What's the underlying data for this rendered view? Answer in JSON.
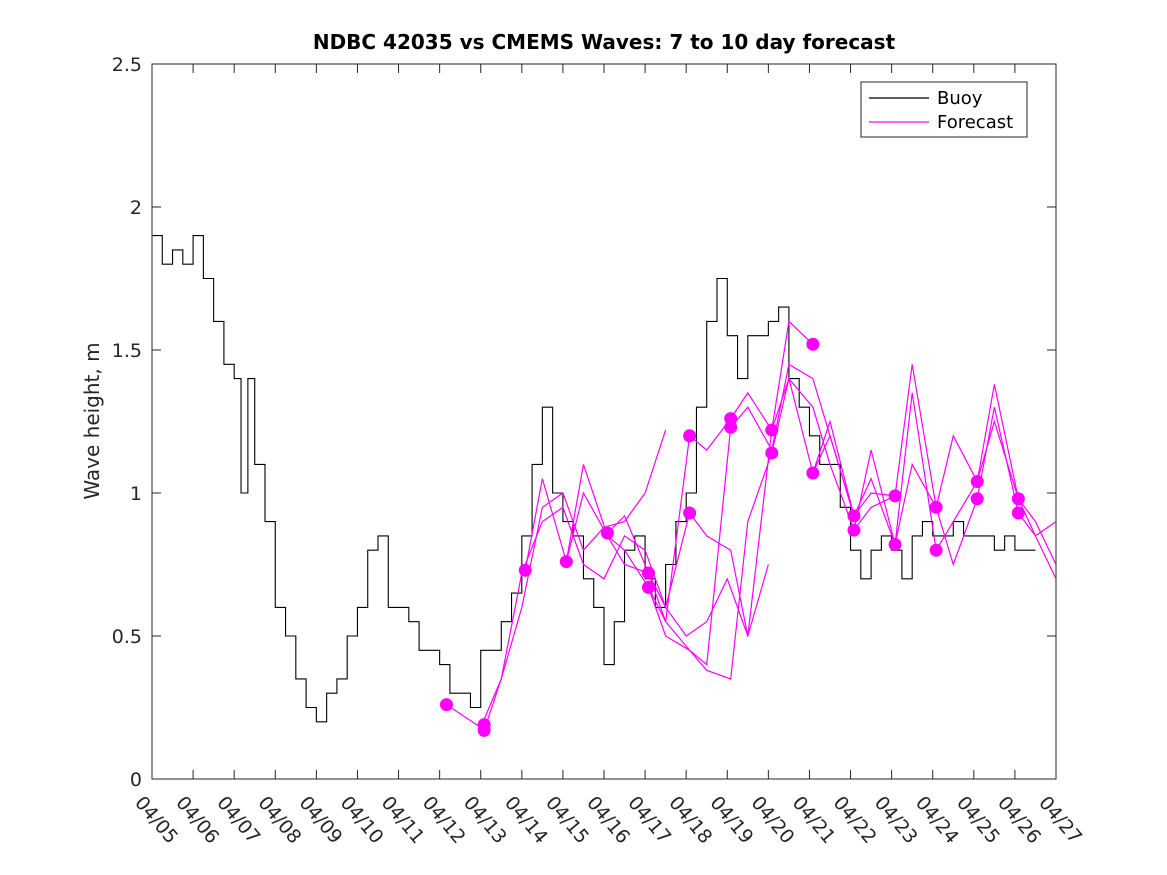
{
  "chart_data": {
    "type": "line",
    "title": "NDBC 42035 vs CMEMS Waves: 7 to 10 day forecast",
    "xlabel": "",
    "ylabel": "Wave height, m",
    "xlim": [
      "04/05",
      "04/27"
    ],
    "ylim": [
      0,
      2.5
    ],
    "x_ticks": [
      "04/05",
      "04/06",
      "04/07",
      "04/08",
      "04/09",
      "04/10",
      "04/11",
      "04/12",
      "04/13",
      "04/14",
      "04/15",
      "04/16",
      "04/17",
      "04/18",
      "04/19",
      "04/20",
      "04/21",
      "04/22",
      "04/23",
      "04/24",
      "04/25",
      "04/26",
      "04/27"
    ],
    "y_ticks": [
      "0",
      "0.5",
      "1",
      "1.5",
      "2",
      "2.5"
    ],
    "grid": false,
    "legend_position": "top-right",
    "legend": [
      {
        "label": "Buoy",
        "color": "#000000"
      },
      {
        "label": "Forecast",
        "color": "#ff00ff"
      }
    ],
    "colors": {
      "buoy": "#000000",
      "forecast": "#ff00ff"
    },
    "buoy": {
      "name": "Buoy",
      "x": [
        "04/05 00:00",
        "04/05 06:00",
        "04/05 12:00",
        "04/05 18:00",
        "04/06 00:00",
        "04/06 06:00",
        "04/06 12:00",
        "04/06 18:00",
        "04/07 00:00",
        "04/07 04:00",
        "04/07 08:00",
        "04/07 12:00",
        "04/07 18:00",
        "04/08 00:00",
        "04/08 06:00",
        "04/08 12:00",
        "04/08 18:00",
        "04/09 00:00",
        "04/09 06:00",
        "04/09 12:00",
        "04/09 18:00",
        "04/10 00:00",
        "04/10 06:00",
        "04/10 12:00",
        "04/10 18:00",
        "04/11 00:00",
        "04/11 06:00",
        "04/11 12:00",
        "04/11 18:00",
        "04/12 00:00",
        "04/12 06:00",
        "04/12 12:00",
        "04/12 18:00",
        "04/13 00:00",
        "04/13 06:00",
        "04/13 12:00",
        "04/13 18:00",
        "04/14 00:00",
        "04/14 06:00",
        "04/14 12:00",
        "04/14 18:00",
        "04/15 00:00",
        "04/15 06:00",
        "04/15 12:00",
        "04/15 18:00",
        "04/16 00:00",
        "04/16 06:00",
        "04/16 12:00",
        "04/16 18:00",
        "04/17 00:00",
        "04/17 06:00",
        "04/17 12:00",
        "04/17 18:00",
        "04/18 00:00",
        "04/18 06:00",
        "04/18 12:00",
        "04/18 18:00",
        "04/19 00:00",
        "04/19 06:00",
        "04/19 12:00",
        "04/19 18:00",
        "04/20 00:00",
        "04/20 06:00",
        "04/20 12:00",
        "04/20 18:00",
        "04/21 00:00",
        "04/21 06:00",
        "04/21 12:00",
        "04/21 18:00",
        "04/22 00:00",
        "04/22 06:00",
        "04/22 12:00",
        "04/22 18:00",
        "04/23 00:00",
        "04/23 06:00",
        "04/23 12:00",
        "04/23 18:00",
        "04/24 00:00",
        "04/24 06:00",
        "04/24 12:00",
        "04/24 18:00",
        "04/25 00:00",
        "04/25 06:00",
        "04/25 12:00",
        "04/25 18:00",
        "04/26 00:00",
        "04/26 12:00"
      ],
      "y": [
        1.9,
        1.8,
        1.85,
        1.8,
        1.9,
        1.75,
        1.6,
        1.45,
        1.4,
        1.0,
        1.4,
        1.1,
        0.9,
        0.6,
        0.5,
        0.35,
        0.25,
        0.2,
        0.3,
        0.35,
        0.5,
        0.6,
        0.8,
        0.85,
        0.6,
        0.6,
        0.55,
        0.45,
        0.45,
        0.4,
        0.3,
        0.3,
        0.25,
        0.45,
        0.45,
        0.55,
        0.65,
        0.85,
        1.1,
        1.3,
        1.0,
        0.9,
        0.85,
        0.7,
        0.6,
        0.4,
        0.55,
        0.8,
        0.85,
        0.7,
        0.6,
        0.75,
        0.9,
        1.0,
        1.3,
        1.6,
        1.75,
        1.55,
        1.4,
        1.55,
        1.55,
        1.6,
        1.65,
        1.4,
        1.3,
        1.2,
        1.1,
        1.1,
        0.95,
        0.8,
        0.7,
        0.8,
        0.85,
        0.8,
        0.7,
        0.85,
        0.9,
        0.85,
        0.85,
        0.9,
        0.85,
        0.85,
        0.85,
        0.8,
        0.85,
        0.8,
        0.8
      ]
    },
    "forecast_series": [
      {
        "name": "Forecast",
        "x": [
          "04/12 04:00",
          "04/13 00:00",
          "04/13 12:00",
          "04/14 00:00",
          "04/14 12:00",
          "04/15 00:00",
          "04/15 12:00",
          "04/16 00:00",
          "04/16 12:00",
          "04/17 00:00",
          "04/17 12:00"
        ],
        "y": [
          0.26,
          0.18,
          0.35,
          0.6,
          0.95,
          1.0,
          0.8,
          0.88,
          0.9,
          1.0,
          1.22
        ]
      },
      {
        "name": "Forecast",
        "x": [
          "04/13 02:00",
          "04/13 12:00",
          "04/14 00:00",
          "04/14 12:00",
          "04/15 00:00",
          "04/15 12:00",
          "04/16 00:00",
          "04/16 12:00",
          "04/17 00:00",
          "04/17 12:00",
          "04/18 00:00",
          "04/18 12:00",
          "04/19 00:00",
          "04/19 12:00",
          "04/20 00:00"
        ],
        "y": [
          0.17,
          0.35,
          0.72,
          0.9,
          0.95,
          0.75,
          0.7,
          0.85,
          0.8,
          0.6,
          0.5,
          0.55,
          0.7,
          0.5,
          0.75
        ]
      },
      {
        "name": "Forecast",
        "x": [
          "04/14 02:00",
          "04/14 12:00",
          "04/15 02:00",
          "04/15 12:00",
          "04/16 02:00",
          "04/16 12:00",
          "04/17 02:00",
          "04/17 12:00",
          "04/18 02:00",
          "04/18 12:00",
          "04/19 02:00",
          "04/19 12:00",
          "04/20 02:00",
          "04/20 12:00",
          "04/21 02:00"
        ],
        "y": [
          0.73,
          1.05,
          0.76,
          1.1,
          0.85,
          0.75,
          0.72,
          0.6,
          0.93,
          0.85,
          0.8,
          0.5,
          1.22,
          1.6,
          1.52
        ]
      },
      {
        "name": "Forecast",
        "x": [
          "04/15 02:00",
          "04/15 12:00",
          "04/16 02:00",
          "04/16 12:00",
          "04/17 02:00",
          "04/17 12:00",
          "04/18 02:00",
          "04/18 12:00",
          "04/19 02:00",
          "04/19 12:00",
          "04/20 02:00",
          "04/20 12:00",
          "04/21 02:00",
          "04/21 12:00",
          "04/22 02:00"
        ],
        "y": [
          0.76,
          1.0,
          0.85,
          0.8,
          0.67,
          0.55,
          0.45,
          0.38,
          0.35,
          0.9,
          1.14,
          1.4,
          1.07,
          1.2,
          0.92
        ]
      },
      {
        "name": "Forecast",
        "x": [
          "04/16 02:00",
          "04/16 12:00",
          "04/17 02:00",
          "04/17 12:00",
          "04/18 02:00",
          "04/18 12:00",
          "04/19 02:00",
          "04/19 12:00",
          "04/20 02:00",
          "04/20 12:00",
          "04/21 02:00",
          "04/21 12:00",
          "04/22 02:00",
          "04/22 12:00",
          "04/23 02:00"
        ],
        "y": [
          0.86,
          0.92,
          0.72,
          0.55,
          1.2,
          1.15,
          1.26,
          1.35,
          1.22,
          1.4,
          1.3,
          1.1,
          0.87,
          0.95,
          0.99
        ]
      },
      {
        "name": "Forecast",
        "x": [
          "04/17 02:00",
          "04/17 12:00",
          "04/18 02:00",
          "04/18 12:00",
          "04/19 02:00",
          "04/19 12:00",
          "04/20 02:00",
          "04/20 12:00",
          "04/21 02:00",
          "04/21 12:00",
          "04/22 02:00",
          "04/22 12:00",
          "04/23 02:00",
          "04/23 12:00",
          "04/24 02:00"
        ],
        "y": [
          0.67,
          0.5,
          0.45,
          0.4,
          1.23,
          1.3,
          1.15,
          1.45,
          1.4,
          1.2,
          0.92,
          1.05,
          0.82,
          1.35,
          0.8
        ]
      },
      {
        "name": "Forecast",
        "x": [
          "04/21 02:00",
          "04/21 12:00",
          "04/22 02:00",
          "04/22 12:00",
          "04/23 02:00",
          "04/23 12:00",
          "04/24 02:00",
          "04/24 12:00",
          "04/25 02:00",
          "04/25 12:00",
          "04/26 02:00",
          "04/26 12:00",
          "04/27 00:00"
        ],
        "y": [
          1.07,
          1.25,
          0.92,
          1.0,
          0.99,
          1.45,
          0.95,
          1.2,
          1.04,
          1.38,
          0.98,
          0.9,
          0.75
        ]
      },
      {
        "name": "Forecast",
        "x": [
          "04/22 02:00",
          "04/22 12:00",
          "04/23 02:00",
          "04/23 12:00",
          "04/24 02:00",
          "04/24 12:00",
          "04/25 02:00",
          "04/25 12:00",
          "04/26 02:00",
          "04/26 12:00",
          "04/27 00:00"
        ],
        "y": [
          0.87,
          1.15,
          0.82,
          1.1,
          0.95,
          0.75,
          0.98,
          1.3,
          0.93,
          0.85,
          0.7
        ]
      },
      {
        "name": "Forecast",
        "x": [
          "04/24 02:00",
          "04/24 12:00",
          "04/25 02:00",
          "04/25 12:00",
          "04/26 02:00",
          "04/26 12:00",
          "04/27 00:00"
        ],
        "y": [
          0.8,
          0.9,
          1.04,
          1.25,
          0.98,
          0.85,
          0.9
        ]
      }
    ],
    "forecast_markers": {
      "x": [
        "04/12 04:00",
        "04/13 02:00",
        "04/13 02:00",
        "04/14 02:00",
        "04/15 02:00",
        "04/16 02:00",
        "04/17 02:00",
        "04/17 02:00",
        "04/18 02:00",
        "04/18 02:00",
        "04/19 02:00",
        "04/19 02:00",
        "04/20 02:00",
        "04/20 02:00",
        "04/21 02:00",
        "04/21 02:00",
        "04/22 02:00",
        "04/22 02:00",
        "04/23 02:00",
        "04/23 02:00",
        "04/24 02:00",
        "04/24 02:00",
        "04/25 02:00",
        "04/25 02:00",
        "04/26 02:00",
        "04/26 02:00"
      ],
      "y": [
        0.26,
        0.17,
        0.19,
        0.73,
        0.76,
        0.86,
        0.67,
        0.72,
        0.93,
        1.2,
        1.23,
        1.26,
        1.14,
        1.22,
        1.07,
        1.52,
        0.87,
        0.92,
        0.82,
        0.99,
        0.8,
        0.95,
        0.98,
        1.04,
        0.93,
        0.98
      ]
    }
  }
}
